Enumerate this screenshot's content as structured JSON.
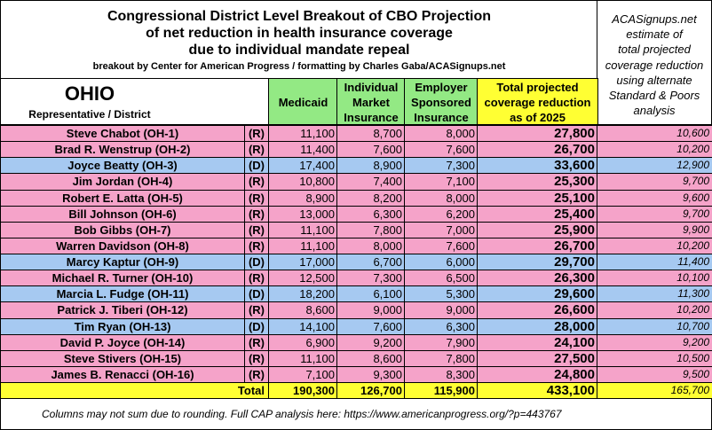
{
  "header": {
    "title_lines": [
      "Congressional District Level Breakout of CBO Projection",
      "of net reduction in health insurance coverage",
      "due to individual mandate repeal"
    ],
    "credit": "breakout by Center for American Progress / formatting by Charles Gaba/ACASignups.net"
  },
  "side_note": [
    "ACASignups.net",
    "estimate of",
    "total projected",
    "coverage reduction",
    "using alternate",
    "Standard & Poors",
    "analysis"
  ],
  "table": {
    "state": "OHIO",
    "subtitle": "Representative / District",
    "columns": [
      [
        "Medicaid"
      ],
      [
        "Individual",
        "Market",
        "Insurance"
      ],
      [
        "Employer",
        "Sponsored",
        "Insurance"
      ],
      [
        "Total projected",
        "coverage reduction",
        "as of 2025"
      ]
    ],
    "column_colors": [
      "#93e984",
      "#93e984",
      "#93e984",
      "#ffff33"
    ],
    "rows": [
      {
        "name": "Steve Chabot (OH-1)",
        "party": "(R)",
        "cells": [
          "11,100",
          "8,700",
          "8,000",
          "27,800",
          "10,600"
        ],
        "color": "#f5a3c9"
      },
      {
        "name": "Brad R. Wenstrup (OH-2)",
        "party": "(R)",
        "cells": [
          "11,400",
          "7,600",
          "7,600",
          "26,700",
          "10,200"
        ],
        "color": "#f5a3c9"
      },
      {
        "name": "Joyce Beatty (OH-3)",
        "party": "(D)",
        "cells": [
          "17,400",
          "8,900",
          "7,300",
          "33,600",
          "12,900"
        ],
        "color": "#a6c9f1"
      },
      {
        "name": "Jim Jordan (OH-4)",
        "party": "(R)",
        "cells": [
          "10,800",
          "7,400",
          "7,100",
          "25,300",
          "9,700"
        ],
        "color": "#f5a3c9"
      },
      {
        "name": "Robert E. Latta (OH-5)",
        "party": "(R)",
        "cells": [
          "8,900",
          "8,200",
          "8,000",
          "25,100",
          "9,600"
        ],
        "color": "#f5a3c9"
      },
      {
        "name": "Bill Johnson (OH-6)",
        "party": "(R)",
        "cells": [
          "13,000",
          "6,300",
          "6,200",
          "25,400",
          "9,700"
        ],
        "color": "#f5a3c9"
      },
      {
        "name": "Bob Gibbs (OH-7)",
        "party": "(R)",
        "cells": [
          "11,100",
          "7,800",
          "7,000",
          "25,900",
          "9,900"
        ],
        "color": "#f5a3c9"
      },
      {
        "name": "Warren Davidson (OH-8)",
        "party": "(R)",
        "cells": [
          "11,100",
          "8,000",
          "7,600",
          "26,700",
          "10,200"
        ],
        "color": "#f5a3c9"
      },
      {
        "name": "Marcy Kaptur (OH-9)",
        "party": "(D)",
        "cells": [
          "17,000",
          "6,700",
          "6,000",
          "29,700",
          "11,400"
        ],
        "color": "#a6c9f1"
      },
      {
        "name": "Michael R. Turner (OH-10)",
        "party": "(R)",
        "cells": [
          "12,500",
          "7,300",
          "6,500",
          "26,300",
          "10,100"
        ],
        "color": "#f5a3c9"
      },
      {
        "name": "Marcia L. Fudge (OH-11)",
        "party": "(D)",
        "cells": [
          "18,200",
          "6,100",
          "5,300",
          "29,600",
          "11,300"
        ],
        "color": "#a6c9f1"
      },
      {
        "name": "Patrick J. Tiberi (OH-12)",
        "party": "(R)",
        "cells": [
          "8,600",
          "9,000",
          "9,000",
          "26,600",
          "10,200"
        ],
        "color": "#f5a3c9"
      },
      {
        "name": "Tim Ryan (OH-13)",
        "party": "(D)",
        "cells": [
          "14,100",
          "7,600",
          "6,300",
          "28,000",
          "10,700"
        ],
        "color": "#a6c9f1"
      },
      {
        "name": "David P. Joyce (OH-14)",
        "party": "(R)",
        "cells": [
          "6,900",
          "9,200",
          "7,900",
          "24,100",
          "9,200"
        ],
        "color": "#f5a3c9"
      },
      {
        "name": "Steve Stivers (OH-15)",
        "party": "(R)",
        "cells": [
          "11,100",
          "8,600",
          "7,800",
          "27,500",
          "10,500"
        ],
        "color": "#f5a3c9"
      },
      {
        "name": "James B. Renacci (OH-16)",
        "party": "(R)",
        "cells": [
          "7,100",
          "9,300",
          "8,300",
          "24,800",
          "9,500"
        ],
        "color": "#f5a3c9"
      }
    ],
    "total": {
      "label": "Total",
      "cells": [
        "190,300",
        "126,700",
        "115,900",
        "433,100",
        "165,700"
      ],
      "color": "#ffff33"
    }
  },
  "footer": "Columns may not sum due to rounding. Full CAP analysis here: https://www.americanprogress.org/?p=443767"
}
